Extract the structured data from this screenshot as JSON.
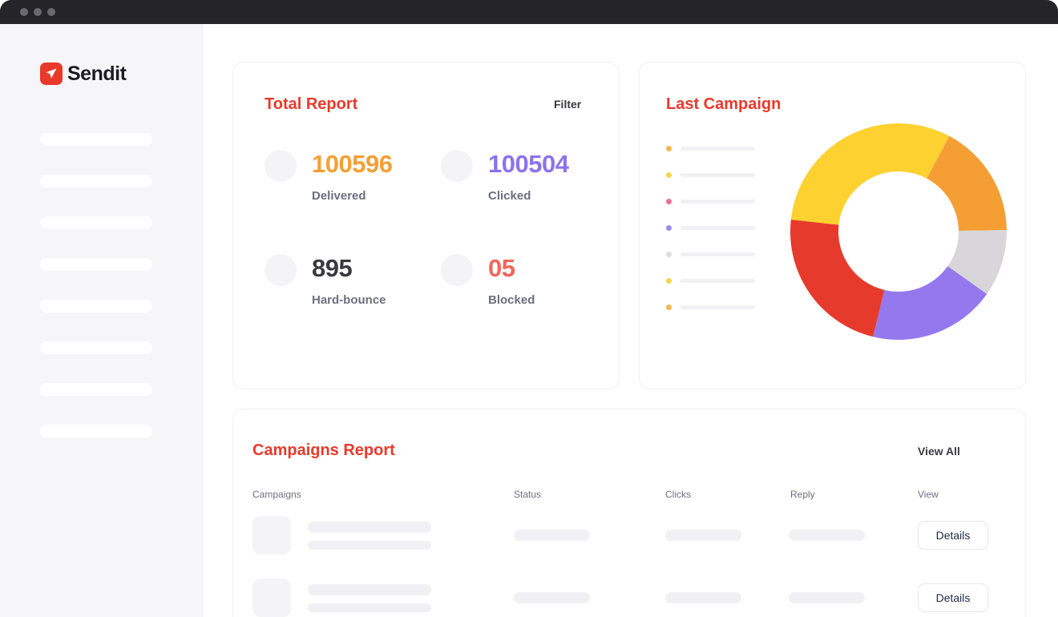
{
  "app": {
    "name": "Sendit"
  },
  "total_report": {
    "title": "Total Report",
    "filter_label": "Filter",
    "stats": [
      {
        "value": "100596",
        "label": "Delivered",
        "color": "#f4a034"
      },
      {
        "value": "100504",
        "label": "Clicked",
        "color": "#8b73ec"
      },
      {
        "value": "895",
        "label": "Hard-bounce",
        "color": "#3a3940"
      },
      {
        "value": "05",
        "label": "Blocked",
        "color": "#f0675b"
      }
    ]
  },
  "last_campaign": {
    "title": "Last Campaign",
    "legend_colors": [
      "#f4b552",
      "#fad44a",
      "#ec6d92",
      "#9f8af0",
      "#dcdcdf",
      "#fad44a",
      "#f4b552"
    ]
  },
  "chart_data": {
    "type": "pie",
    "title": "Last Campaign",
    "slices": [
      {
        "value": 17,
        "color": "#f59e34"
      },
      {
        "value": 10,
        "color": "#d8d6da"
      },
      {
        "value": 19,
        "color": "#9478ee"
      },
      {
        "value": 23,
        "color": "#e63a2c"
      },
      {
        "value": 31,
        "color": "#fdd130"
      }
    ]
  },
  "campaigns_report": {
    "title": "Campaigns Report",
    "view_all_label": "View All",
    "columns": [
      "Campaigns",
      "Status",
      "Clicks",
      "Reply",
      "View"
    ],
    "rows": [
      {
        "action_label": "Details"
      },
      {
        "action_label": "Details"
      }
    ]
  },
  "colors": {
    "accent": "#e8392b",
    "sidebar_bg": "#f6f5f8",
    "titlebar": "#252429"
  }
}
